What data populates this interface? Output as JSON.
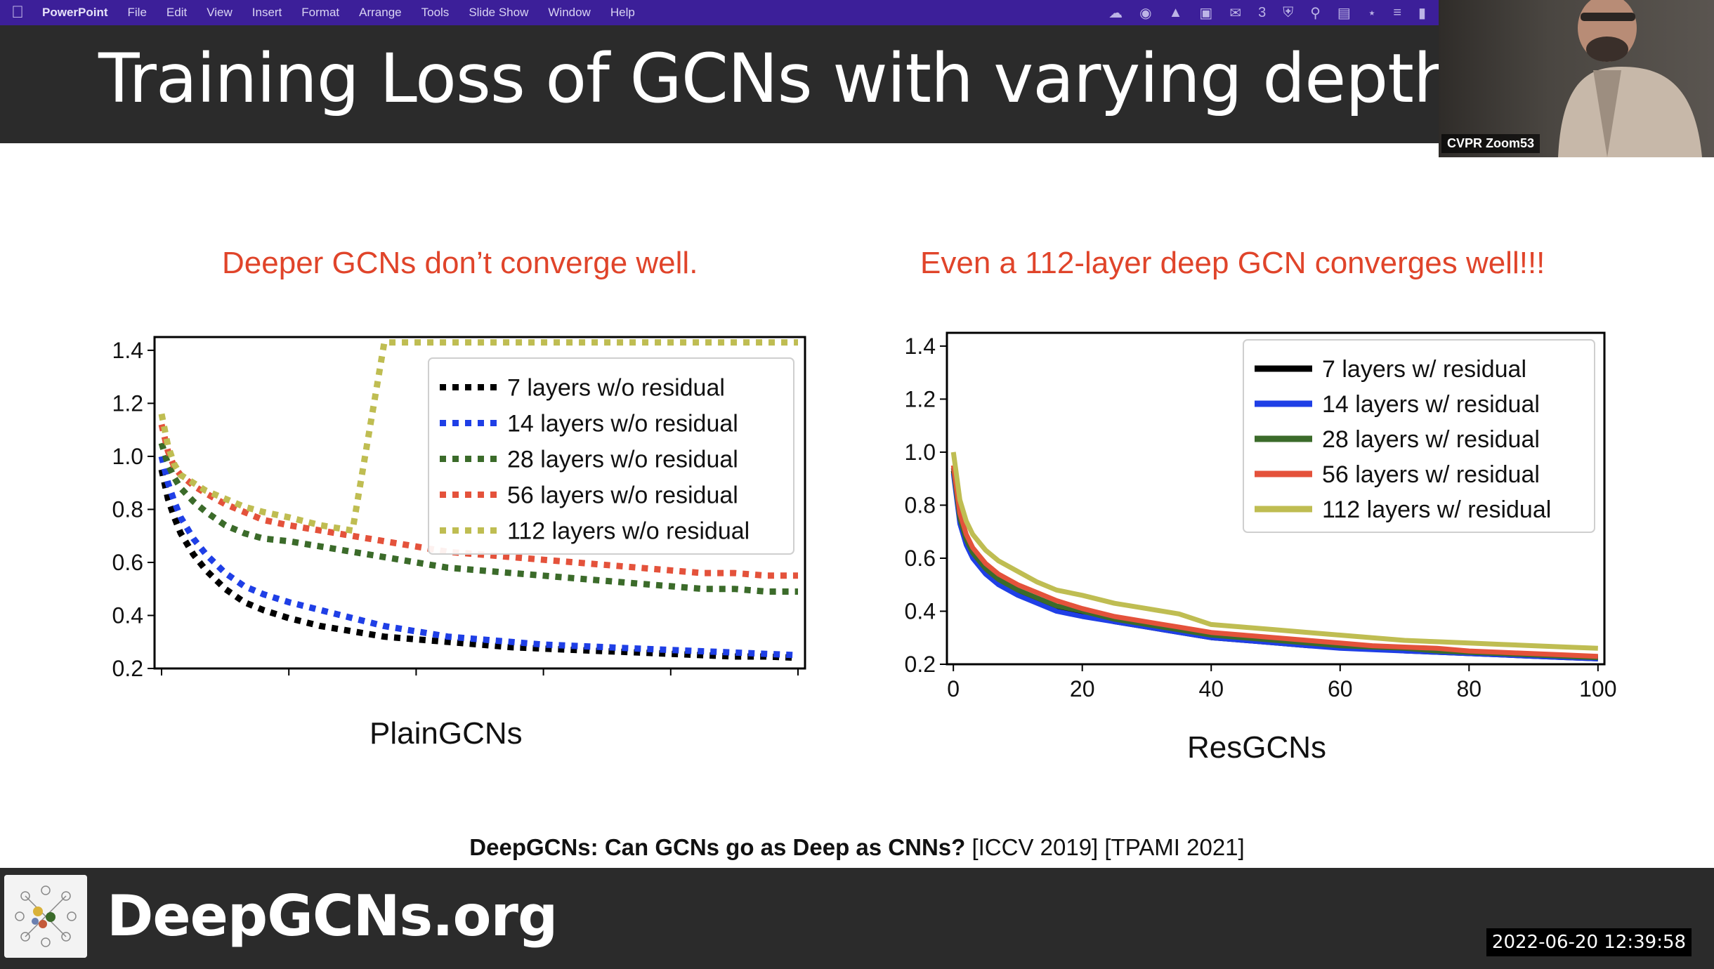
{
  "menubar": {
    "app_name": "PowerPoint",
    "items": [
      "File",
      "Edit",
      "View",
      "Insert",
      "Format",
      "Arrange",
      "Tools",
      "Slide Show",
      "Window",
      "Help"
    ],
    "tray_badge": "3"
  },
  "slide": {
    "title": "Training Loss of GCNs with varying depth",
    "left_subtitle": "Deeper GCNs don’t converge well.",
    "right_subtitle": "Even a 112-layer deep GCN converges well!!!",
    "left_caption": "PlainGCNs",
    "right_caption": "ResGCNs",
    "reference_bold": "DeepGCNs: Can GCNs go as Deep as CNNs?",
    "reference_rest": " [ICCV 2019] [TPAMI 2021]"
  },
  "video": {
    "participant_name": "CVPR Zoom53"
  },
  "footer": {
    "site": "DeepGCNs.org",
    "timestamp": "2022-06-20 12:39:58"
  },
  "chart_data": [
    {
      "type": "line",
      "title": "PlainGCNs",
      "line_style": "dotted",
      "xlim": [
        0,
        100
      ],
      "ylim": [
        0.2,
        1.45
      ],
      "x_tick_labels": [
        "",
        "",
        "",
        "",
        "",
        ""
      ],
      "y_ticks": [
        "0.2",
        "0.4",
        "0.6",
        "0.8",
        "1.0",
        "1.2",
        "1.4"
      ],
      "legend_position": "top-right",
      "x": [
        0,
        1,
        2,
        3,
        5,
        7,
        10,
        13,
        16,
        20,
        25,
        30,
        35,
        40,
        45,
        50,
        55,
        60,
        65,
        70,
        75,
        80,
        85,
        90,
        95,
        100
      ],
      "series": [
        {
          "name": "7 layers w/o residual",
          "color": "#000000",
          "values": [
            0.95,
            0.84,
            0.77,
            0.71,
            0.63,
            0.57,
            0.5,
            0.45,
            0.42,
            0.39,
            0.36,
            0.34,
            0.32,
            0.31,
            0.3,
            0.29,
            0.28,
            0.275,
            0.27,
            0.265,
            0.26,
            0.255,
            0.25,
            0.245,
            0.245,
            0.24
          ]
        },
        {
          "name": "14 layers w/o residual",
          "color": "#1f3fe6",
          "values": [
            1.0,
            0.9,
            0.83,
            0.77,
            0.69,
            0.63,
            0.56,
            0.51,
            0.48,
            0.45,
            0.42,
            0.39,
            0.36,
            0.34,
            0.32,
            0.31,
            0.3,
            0.29,
            0.285,
            0.28,
            0.275,
            0.27,
            0.265,
            0.26,
            0.255,
            0.25
          ]
        },
        {
          "name": "28 layers w/o residual",
          "color": "#3b6b2a",
          "values": [
            1.05,
            0.97,
            0.92,
            0.88,
            0.83,
            0.79,
            0.74,
            0.71,
            0.69,
            0.68,
            0.66,
            0.64,
            0.62,
            0.6,
            0.58,
            0.57,
            0.56,
            0.55,
            0.54,
            0.53,
            0.52,
            0.51,
            0.5,
            0.5,
            0.49,
            0.49
          ]
        },
        {
          "name": "56 layers w/o residual",
          "color": "#e4523b",
          "values": [
            1.12,
            1.02,
            0.96,
            0.93,
            0.89,
            0.86,
            0.82,
            0.79,
            0.76,
            0.74,
            0.72,
            0.7,
            0.68,
            0.66,
            0.64,
            0.63,
            0.62,
            0.61,
            0.6,
            0.59,
            0.58,
            0.57,
            0.56,
            0.56,
            0.55,
            0.55
          ]
        },
        {
          "name": "112 layers w/o residual",
          "color": "#bfbd52",
          "values": [
            1.16,
            1.04,
            0.97,
            0.93,
            0.9,
            0.87,
            0.84,
            0.81,
            0.79,
            0.77,
            0.74,
            0.72,
            1.43,
            1.43,
            1.43,
            1.43,
            1.43,
            1.43,
            1.43,
            1.43,
            1.43,
            1.43,
            1.43,
            1.43,
            1.43,
            1.43
          ]
        }
      ]
    },
    {
      "type": "line",
      "title": "ResGCNs",
      "line_style": "solid",
      "xlim": [
        -1,
        101
      ],
      "ylim": [
        0.2,
        1.45
      ],
      "x_ticks": [
        "0",
        "20",
        "40",
        "60",
        "80",
        "100"
      ],
      "y_ticks": [
        "0.2",
        "0.4",
        "0.6",
        "0.8",
        "1.0",
        "1.2",
        "1.4"
      ],
      "legend_position": "top-right",
      "x": [
        0,
        1,
        2,
        3,
        5,
        7,
        10,
        13,
        16,
        20,
        25,
        30,
        35,
        40,
        45,
        50,
        55,
        60,
        65,
        70,
        75,
        80,
        85,
        90,
        95,
        100
      ],
      "series": [
        {
          "name": "7 layers w/ residual",
          "color": "#000000",
          "values": [
            0.93,
            0.74,
            0.66,
            0.61,
            0.55,
            0.51,
            0.47,
            0.44,
            0.41,
            0.39,
            0.36,
            0.34,
            0.32,
            0.3,
            0.29,
            0.28,
            0.27,
            0.265,
            0.26,
            0.25,
            0.245,
            0.24,
            0.235,
            0.23,
            0.225,
            0.22
          ]
        },
        {
          "name": "14 layers w/ residual",
          "color": "#1f3fe6",
          "values": [
            0.92,
            0.73,
            0.65,
            0.6,
            0.54,
            0.5,
            0.46,
            0.43,
            0.4,
            0.38,
            0.36,
            0.34,
            0.32,
            0.3,
            0.29,
            0.28,
            0.27,
            0.26,
            0.255,
            0.25,
            0.245,
            0.24,
            0.235,
            0.23,
            0.225,
            0.22
          ]
        },
        {
          "name": "28 layers w/ residual",
          "color": "#3b6b2a",
          "values": [
            0.94,
            0.75,
            0.67,
            0.62,
            0.56,
            0.52,
            0.48,
            0.45,
            0.42,
            0.4,
            0.37,
            0.35,
            0.33,
            0.31,
            0.3,
            0.29,
            0.28,
            0.27,
            0.265,
            0.26,
            0.25,
            0.245,
            0.24,
            0.235,
            0.23,
            0.225
          ]
        },
        {
          "name": "56 layers w/ residual",
          "color": "#e4523b",
          "values": [
            0.95,
            0.77,
            0.69,
            0.64,
            0.58,
            0.54,
            0.5,
            0.47,
            0.44,
            0.41,
            0.38,
            0.36,
            0.34,
            0.32,
            0.31,
            0.3,
            0.29,
            0.28,
            0.27,
            0.265,
            0.26,
            0.25,
            0.245,
            0.24,
            0.235,
            0.23
          ]
        },
        {
          "name": "112 layers w/ residual",
          "color": "#bfbd52",
          "values": [
            1.0,
            0.82,
            0.74,
            0.69,
            0.63,
            0.59,
            0.55,
            0.51,
            0.48,
            0.46,
            0.43,
            0.41,
            0.39,
            0.35,
            0.34,
            0.33,
            0.32,
            0.31,
            0.3,
            0.29,
            0.285,
            0.28,
            0.275,
            0.27,
            0.265,
            0.26
          ]
        }
      ]
    }
  ]
}
